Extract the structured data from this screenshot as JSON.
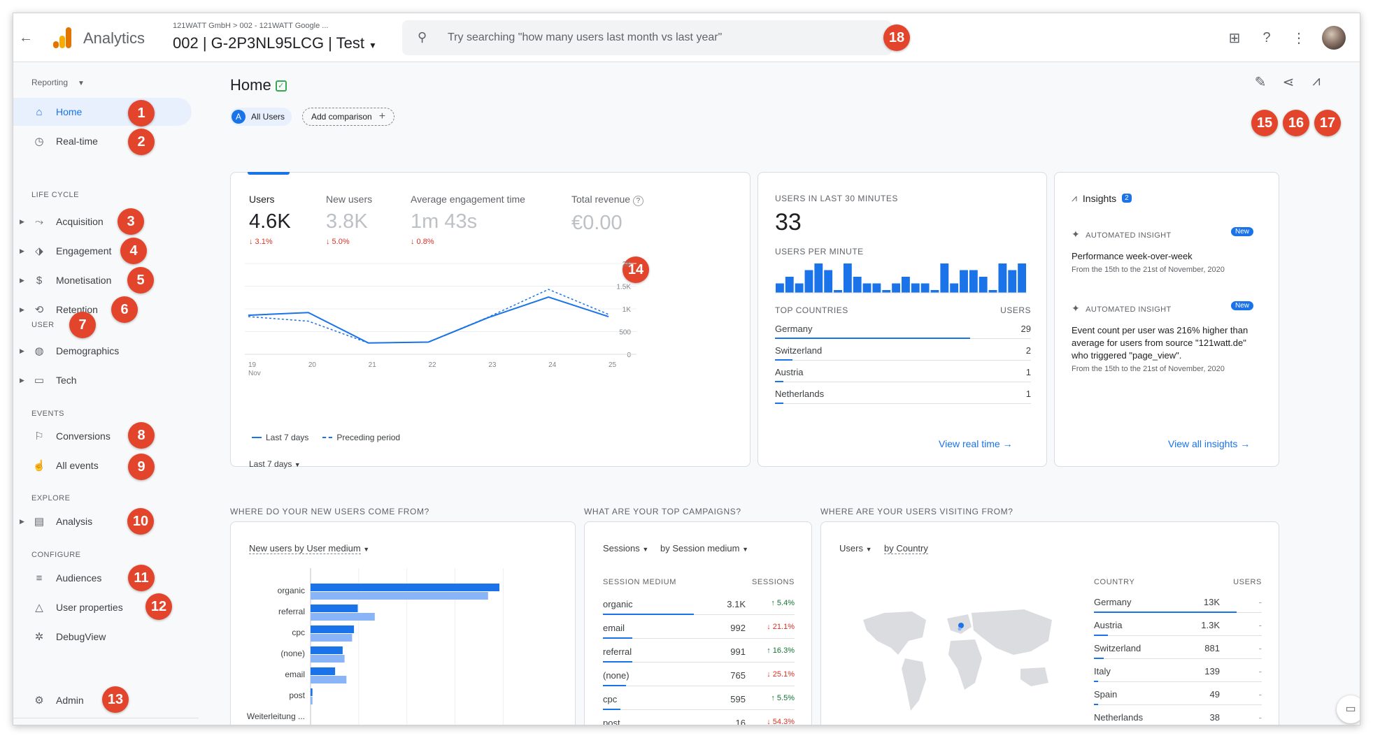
{
  "topbar": {
    "app_name": "Analytics",
    "breadcrumb": "121WATT GmbH > 002 - 121WATT Google ...",
    "property": "002 | G-2P3NL95LCG | Test",
    "search_placeholder": "Try searching \"how many users last month vs last year\""
  },
  "badges": [
    "1",
    "2",
    "3",
    "4",
    "5",
    "6",
    "7",
    "8",
    "9",
    "10",
    "11",
    "12",
    "13",
    "14",
    "15",
    "16",
    "17",
    "18"
  ],
  "sidebar": {
    "reporting": "Reporting",
    "home": "Home",
    "realtime": "Real-time",
    "sec_lifecycle": "LIFE CYCLE",
    "acquisition": "Acquisition",
    "engagement": "Engagement",
    "monetisation": "Monetisation",
    "retention": "Retention",
    "sec_user": "USER",
    "demographics": "Demographics",
    "tech": "Tech",
    "sec_events": "EVENTS",
    "conversions": "Conversions",
    "all_events": "All events",
    "sec_explore": "EXPLORE",
    "analysis": "Analysis",
    "sec_configure": "CONFIGURE",
    "audiences": "Audiences",
    "user_properties": "User properties",
    "debugview": "DebugView",
    "admin": "Admin"
  },
  "main": {
    "title": "Home",
    "chip_all_users_letter": "A",
    "chip_all_users": "All Users",
    "add_comparison": "Add comparison"
  },
  "overview": {
    "metrics": [
      {
        "label": "Users",
        "value": "4.6K",
        "change": "↓ 3.1%"
      },
      {
        "label": "New users",
        "value": "3.8K",
        "change": "↓ 5.0%"
      },
      {
        "label": "Average engagement time",
        "value": "1m 43s",
        "change": "↓ 0.8%"
      },
      {
        "label": "Total revenue",
        "value": "€0.00",
        "change": ""
      }
    ],
    "legend_current": "Last 7 days",
    "legend_previous": "Preceding period",
    "date_range": "Last 7 days",
    "x_month": "Nov"
  },
  "chart_data": {
    "type": "line",
    "x": [
      "19",
      "20",
      "21",
      "22",
      "23",
      "24",
      "25"
    ],
    "y_ticks": [
      "0",
      "500",
      "1K",
      "1.5K",
      "2K"
    ],
    "ylim": [
      0,
      2000
    ],
    "series": [
      {
        "name": "Last 7 days",
        "values": [
          860,
          920,
          250,
          270,
          810,
          1260,
          830
        ]
      },
      {
        "name": "Preceding period",
        "values": [
          830,
          730,
          250,
          270,
          820,
          1430,
          880
        ]
      }
    ]
  },
  "realtime": {
    "header": "USERS IN LAST 30 MINUTES",
    "value": "33",
    "per_minute": "USERS PER MINUTE",
    "per_minute_values": [
      1,
      2,
      1,
      3,
      4,
      3,
      0,
      4,
      2,
      1,
      1,
      0,
      1,
      2,
      1,
      1,
      0,
      4,
      1,
      3,
      3,
      2,
      0,
      4,
      3,
      4
    ],
    "top_countries": "TOP COUNTRIES",
    "users_col": "USERS",
    "countries": [
      {
        "name": "Germany",
        "users": "29",
        "share": 0.9
      },
      {
        "name": "Switzerland",
        "users": "2",
        "share": 0.08
      },
      {
        "name": "Austria",
        "users": "1",
        "share": 0.04
      },
      {
        "name": "Netherlands",
        "users": "1",
        "share": 0.04
      }
    ],
    "link": "View real time"
  },
  "insights": {
    "title": "Insights",
    "count": "2",
    "items": [
      {
        "tag": "AUTOMATED INSIGHT",
        "badge": "New",
        "title": "Performance week-over-week",
        "sub": "From the 15th to the 21st of November, 2020"
      },
      {
        "tag": "AUTOMATED INSIGHT",
        "badge": "New",
        "title": "Event count per user was 216% higher than average for users from source \"121watt.de\" who triggered \"page_view\".",
        "sub": "From the 15th to the 21st of November, 2020"
      }
    ],
    "link": "View all insights"
  },
  "q1": {
    "title": "WHERE DO YOUR NEW USERS COME FROM?",
    "dropdown": "New users by User medium",
    "categories": [
      "organic",
      "referral",
      "cpc",
      "(none)",
      "email",
      "post",
      "Weiterleitung ..."
    ],
    "current": [
      100,
      25,
      23,
      17,
      13,
      1,
      0
    ],
    "previous": [
      94,
      34,
      22,
      18,
      19,
      1,
      0
    ]
  },
  "q2": {
    "title": "WHAT ARE YOUR TOP CAMPAIGNS?",
    "metric": "Sessions",
    "dimension": "by Session medium",
    "col1": "SESSION MEDIUM",
    "col2": "SESSIONS",
    "rows": [
      {
        "name": "organic",
        "value": "3.1K",
        "change": "↑ 5.4%",
        "dir": "up",
        "share": 1.0
      },
      {
        "name": "email",
        "value": "992",
        "change": "↓ 21.1%",
        "dir": "dn",
        "share": 0.32
      },
      {
        "name": "referral",
        "value": "991",
        "change": "↑ 16.3%",
        "dir": "up",
        "share": 0.32
      },
      {
        "name": "(none)",
        "value": "765",
        "change": "↓ 25.1%",
        "dir": "dn",
        "share": 0.25
      },
      {
        "name": "cpc",
        "value": "595",
        "change": "↑ 5.5%",
        "dir": "up",
        "share": 0.19
      },
      {
        "name": "post",
        "value": "16",
        "change": "↓ 54.3%",
        "dir": "dn",
        "share": 0.01
      }
    ]
  },
  "q3": {
    "title": "WHERE ARE YOUR USERS VISITING FROM?",
    "metric": "Users",
    "dimension": "by Country",
    "col1": "COUNTRY",
    "col2": "USERS",
    "rows": [
      {
        "name": "Germany",
        "value": "13K",
        "change": "-",
        "share": 1.0
      },
      {
        "name": "Austria",
        "value": "1.3K",
        "change": "-",
        "share": 0.1
      },
      {
        "name": "Switzerland",
        "value": "881",
        "change": "-",
        "share": 0.07
      },
      {
        "name": "Italy",
        "value": "139",
        "change": "-",
        "share": 0.01
      },
      {
        "name": "Spain",
        "value": "49",
        "change": "-",
        "share": 0.004
      },
      {
        "name": "Netherlands",
        "value": "38",
        "change": "-",
        "share": 0.003
      }
    ]
  }
}
